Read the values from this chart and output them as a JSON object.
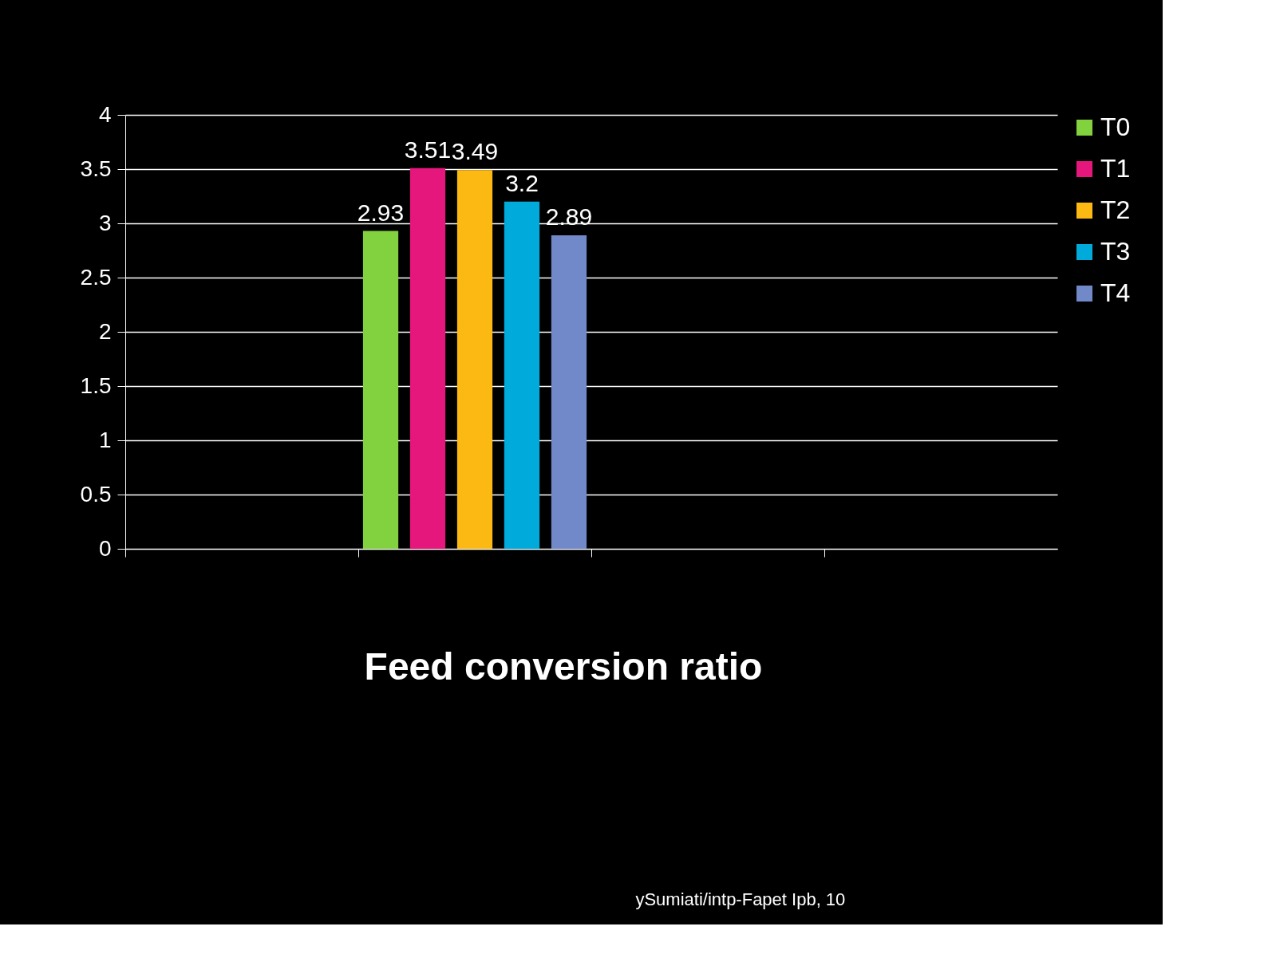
{
  "chart_data": {
    "type": "bar",
    "title": "Feed conversion ratio",
    "categories": [
      null,
      null,
      null,
      null
    ],
    "series": [
      {
        "name": "T0",
        "color": "#82d23f",
        "values": [
          null,
          2.93,
          null,
          null
        ]
      },
      {
        "name": "T1",
        "color": "#e6177c",
        "values": [
          null,
          3.51,
          null,
          null
        ]
      },
      {
        "name": "T2",
        "color": "#fdb913",
        "values": [
          null,
          3.49,
          null,
          null
        ]
      },
      {
        "name": "T3",
        "color": "#00aadb",
        "values": [
          null,
          3.2,
          null,
          null
        ]
      },
      {
        "name": "T4",
        "color": "#7289c9",
        "values": [
          null,
          2.89,
          null,
          null
        ]
      }
    ],
    "ylim": [
      0,
      4
    ],
    "yticks": [
      0,
      0.5,
      1,
      1.5,
      2,
      2.5,
      3,
      3.5,
      4
    ],
    "grid": "y",
    "legend": "right",
    "data_labels": true,
    "tick_labels": "y",
    "annotations": [
      "ySumiati/intp-Fapet Ipb, 10"
    ]
  }
}
